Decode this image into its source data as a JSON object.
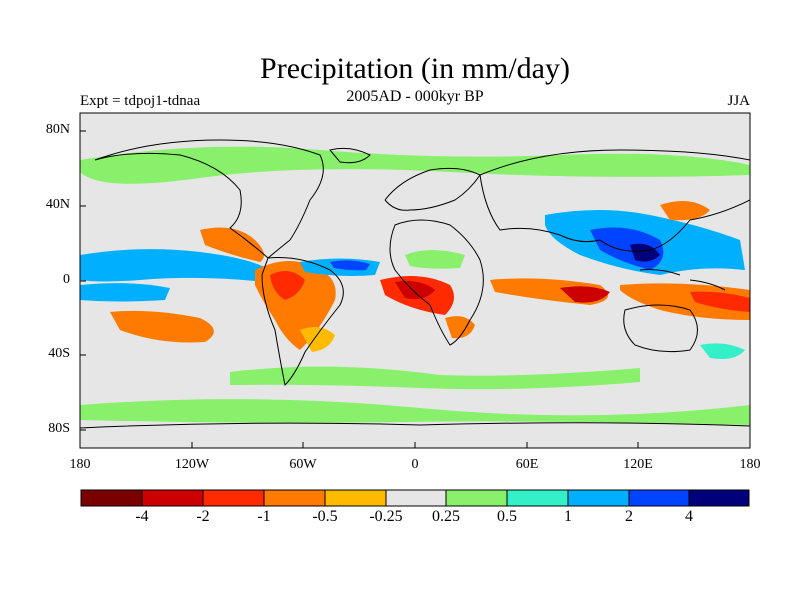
{
  "title": "Precipitation (in mm/day)",
  "subtitle": "2005AD - 000kyr BP",
  "experiment": "Expt = tdpoj1-tdnaa",
  "season": "JJA",
  "y_ticks": [
    "80N",
    "40N",
    "0",
    "40S",
    "80S"
  ],
  "x_ticks": [
    "180",
    "120W",
    "60W",
    "0",
    "60E",
    "120E",
    "180"
  ],
  "colorbar": {
    "labels": [
      "-4",
      "-2",
      "-1",
      "-0.5",
      "-0.25",
      "0.25",
      "0.5",
      "1",
      "2",
      "4"
    ],
    "colors": [
      "#7a0000",
      "#cc0000",
      "#ff2a00",
      "#ff7a00",
      "#ffbb00",
      "#e6e6e6",
      "#88f06a",
      "#33f0c8",
      "#00b0ff",
      "#0044ff",
      "#00007a"
    ]
  },
  "colors": {
    "ocean_background": "#e6e6e6",
    "coastline": "#000000"
  }
}
